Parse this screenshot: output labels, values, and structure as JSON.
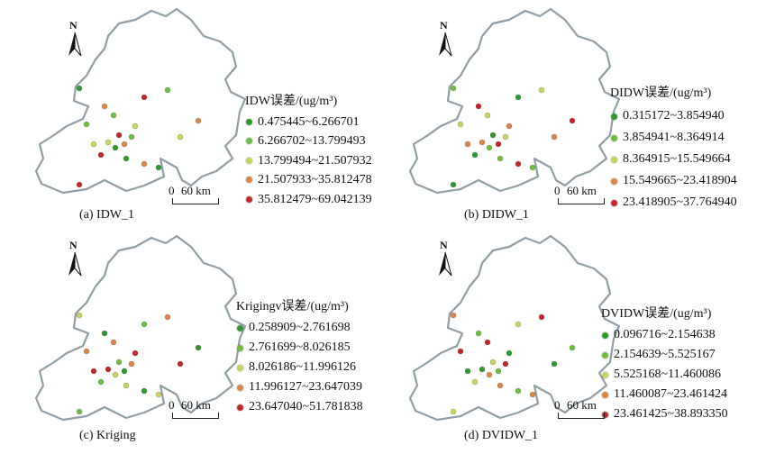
{
  "north_label": "N",
  "scale": {
    "zero": "0",
    "label": "60 km"
  },
  "panels": [
    {
      "caption": "(a) IDW_1",
      "legend_title": "IDW误差/(ug/m³)",
      "classes": [
        {
          "label": "0.475445~6.266701",
          "color": "#2e9a2e"
        },
        {
          "label": "6.266702~13.799493",
          "color": "#6cbf3e"
        },
        {
          "label": "13.799494~21.507932",
          "color": "#c8d35a"
        },
        {
          "label": "21.507933~35.812478",
          "color": "#d98646"
        },
        {
          "label": "35.812479~69.042139",
          "color": "#c3272c"
        }
      ]
    },
    {
      "caption": "(b) DIDW_1",
      "legend_title": "DIDW误差/(ug/m³)",
      "classes": [
        {
          "label": "0.315172~3.854940",
          "color": "#2e9a2e"
        },
        {
          "label": "3.854941~8.364914",
          "color": "#6cbf3e"
        },
        {
          "label": "8.364915~15.549664",
          "color": "#c8d35a"
        },
        {
          "label": "15.549665~23.418904",
          "color": "#d98646"
        },
        {
          "label": "23.418905~37.764940",
          "color": "#c3272c"
        }
      ]
    },
    {
      "caption": "(c) Kriging",
      "legend_title": "Krigingv误差/(ug/m³)",
      "classes": [
        {
          "label": "0.258909~2.761698",
          "color": "#2e9a2e"
        },
        {
          "label": "2.761699~8.026185",
          "color": "#6cbf3e"
        },
        {
          "label": "8.026186~11.996126",
          "color": "#c8d35a"
        },
        {
          "label": "11.996127~23.647039",
          "color": "#d98646"
        },
        {
          "label": "23.647040~51.781838",
          "color": "#c3272c"
        }
      ]
    },
    {
      "caption": "(d) DVIDW_1",
      "legend_title": "DVIDW误差/(ug/m³)",
      "classes": [
        {
          "label": "0.096716~2.154638",
          "color": "#2e9a2e"
        },
        {
          "label": "2.154639~5.525167",
          "color": "#6cbf3e"
        },
        {
          "label": "5.525168~11.460086",
          "color": "#c8d35a"
        },
        {
          "label": "11.460087~23.461424",
          "color": "#d98646"
        },
        {
          "label": "23.461425~38.893350",
          "color": "#c3272c"
        }
      ]
    }
  ]
}
